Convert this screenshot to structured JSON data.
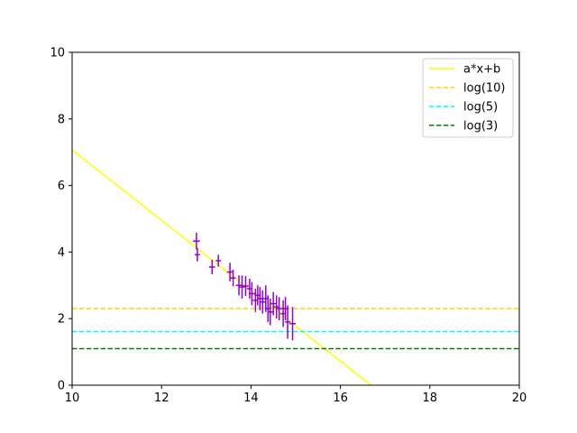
{
  "chart_data": {
    "type": "scatter",
    "title": "",
    "xlabel": "",
    "ylabel": "",
    "xlim": [
      10,
      20
    ],
    "ylim": [
      0,
      10
    ],
    "xticks": [
      10,
      12,
      14,
      16,
      18,
      20
    ],
    "yticks": [
      0,
      2,
      4,
      6,
      8,
      10
    ],
    "grid": false,
    "legend_position": "top-right",
    "series": [
      {
        "name": "a*x+b",
        "kind": "line",
        "style": "solid",
        "color": "#ffff00",
        "x": [
          10,
          16.68
        ],
        "y": [
          7.07,
          0
        ]
      },
      {
        "name": "log(10)",
        "kind": "hline",
        "style": "dashed",
        "color": "#ffd700",
        "y": 2.303
      },
      {
        "name": "log(5)",
        "kind": "hline",
        "style": "dashed",
        "color": "#00ffff",
        "y": 1.609
      },
      {
        "name": "log(3)",
        "kind": "hline",
        "style": "dashed",
        "color": "#008000",
        "y": 1.099
      }
    ],
    "errorbar_points": {
      "color": "#9400d3",
      "points": [
        {
          "x": 12.78,
          "y": 4.33,
          "yerr": 0.25,
          "xerr": 0.08
        },
        {
          "x": 12.8,
          "y": 3.92,
          "yerr": 0.2,
          "xerr": 0.06
        },
        {
          "x": 13.13,
          "y": 3.55,
          "yerr": 0.22,
          "xerr": 0.07
        },
        {
          "x": 13.27,
          "y": 3.74,
          "yerr": 0.18,
          "xerr": 0.06
        },
        {
          "x": 13.53,
          "y": 3.4,
          "yerr": 0.28,
          "xerr": 0.07
        },
        {
          "x": 13.6,
          "y": 3.22,
          "yerr": 0.25,
          "xerr": 0.06
        },
        {
          "x": 13.73,
          "y": 3.0,
          "yerr": 0.3,
          "xerr": 0.07
        },
        {
          "x": 13.8,
          "y": 2.95,
          "yerr": 0.35,
          "xerr": 0.06
        },
        {
          "x": 13.88,
          "y": 2.98,
          "yerr": 0.3,
          "xerr": 0.07
        },
        {
          "x": 13.97,
          "y": 2.9,
          "yerr": 0.3,
          "xerr": 0.06
        },
        {
          "x": 14.02,
          "y": 2.75,
          "yerr": 0.35,
          "xerr": 0.07
        },
        {
          "x": 14.1,
          "y": 2.55,
          "yerr": 0.35,
          "xerr": 0.06
        },
        {
          "x": 14.15,
          "y": 2.7,
          "yerr": 0.3,
          "xerr": 0.07
        },
        {
          "x": 14.2,
          "y": 2.6,
          "yerr": 0.35,
          "xerr": 0.06
        },
        {
          "x": 14.26,
          "y": 2.5,
          "yerr": 0.35,
          "xerr": 0.07
        },
        {
          "x": 14.33,
          "y": 2.6,
          "yerr": 0.4,
          "xerr": 0.06
        },
        {
          "x": 14.38,
          "y": 2.3,
          "yerr": 0.4,
          "xerr": 0.07
        },
        {
          "x": 14.43,
          "y": 2.2,
          "yerr": 0.4,
          "xerr": 0.06
        },
        {
          "x": 14.5,
          "y": 2.45,
          "yerr": 0.35,
          "xerr": 0.07
        },
        {
          "x": 14.57,
          "y": 2.35,
          "yerr": 0.35,
          "xerr": 0.06
        },
        {
          "x": 14.63,
          "y": 2.3,
          "yerr": 0.35,
          "xerr": 0.07
        },
        {
          "x": 14.72,
          "y": 2.15,
          "yerr": 0.4,
          "xerr": 0.06
        },
        {
          "x": 14.77,
          "y": 2.3,
          "yerr": 0.35,
          "xerr": 0.07
        },
        {
          "x": 14.82,
          "y": 1.9,
          "yerr": 0.5,
          "xerr": 0.06
        },
        {
          "x": 14.93,
          "y": 1.85,
          "yerr": 0.5,
          "xerr": 0.07
        }
      ]
    }
  }
}
